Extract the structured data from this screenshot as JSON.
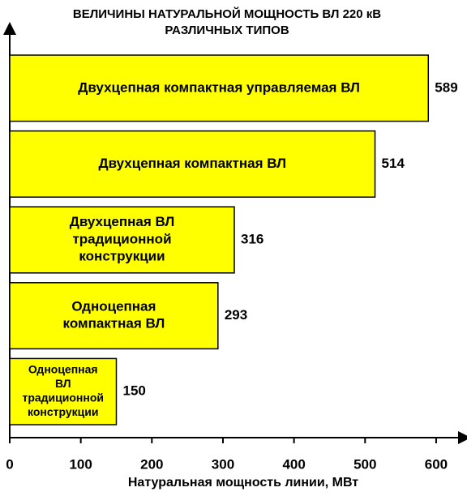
{
  "chart_data": {
    "type": "barh",
    "title": [
      "ВЕЛИЧИНЫ НАТУРАЛЬНОЙ МОЩНОСТЬ ВЛ 220 кВ",
      "РАЗЛИЧНЫХ ТИПОВ"
    ],
    "categories": [
      [
        "Двухцепная компактная управляемая  ВЛ"
      ],
      [
        "Двухцепная компактная   ВЛ"
      ],
      [
        "Двухцепная ВЛ",
        "традиционной",
        "конструкции"
      ],
      [
        "Одноцепная",
        "компактная ВЛ"
      ],
      [
        "Одноцепная",
        "ВЛ",
        "традиционной",
        "конструкции"
      ]
    ],
    "values": [
      589,
      514,
      316,
      293,
      150
    ],
    "color": "#ffff00",
    "xlabel": "Натуральная мощность линии, МВт",
    "xlim": [
      0,
      640
    ],
    "xticks": [
      0,
      100,
      200,
      300,
      400,
      500,
      600
    ]
  }
}
